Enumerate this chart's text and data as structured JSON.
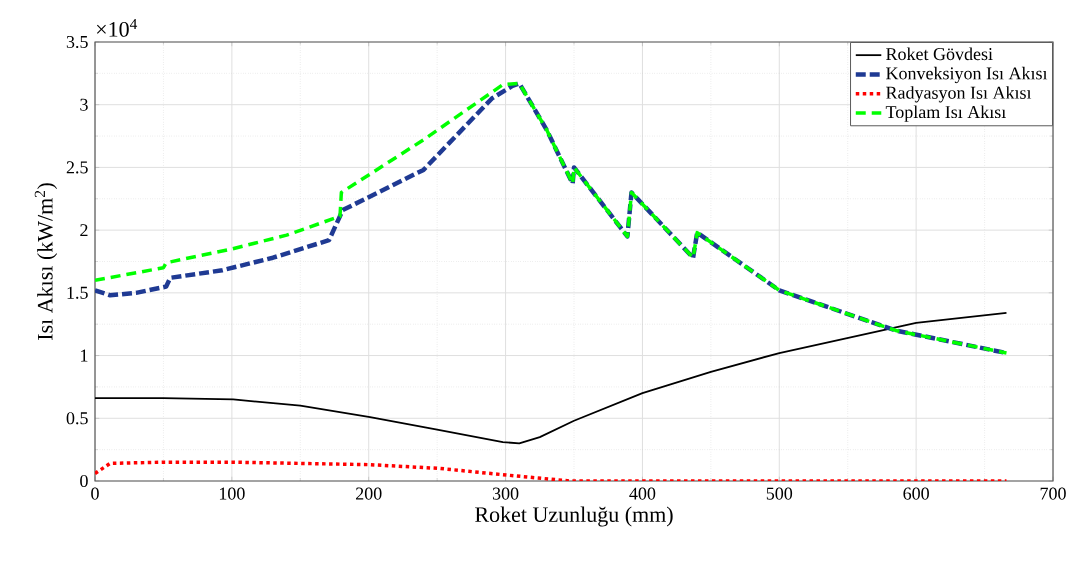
{
  "chart_data": {
    "type": "line",
    "xlabel": "Roket Uzunluğu (mm)",
    "ylabel": "Isı Akısı (kW/m$^{2}$)",
    "annotations": [
      "×10$^{4}$"
    ],
    "xlim": [
      0,
      700
    ],
    "xticks": [
      0,
      100,
      200,
      300,
      400,
      500,
      600,
      700
    ],
    "ylim": [
      0,
      3.5
    ],
    "yticks": [
      0,
      0.5,
      1,
      1.5,
      2,
      2.5,
      3,
      3.5
    ],
    "grid": true,
    "legend": "top right",
    "series": [
      {
        "name": "Roket Gövdesi",
        "color": "#000000",
        "line_style": "solid",
        "x": [
          0,
          50,
          101,
          150,
          201,
          250,
          298,
          310,
          325,
          350,
          400,
          450,
          500,
          550,
          600,
          666
        ],
        "values": [
          0.66,
          0.66,
          0.65,
          0.6,
          0.51,
          0.41,
          0.31,
          0.3,
          0.35,
          0.48,
          0.7,
          0.87,
          1.02,
          1.14,
          1.26,
          1.34
        ]
      },
      {
        "name": "Konveksiyon Isı Akısı",
        "color": "#1f3a93",
        "line_style": "dashed",
        "x": [
          0,
          11,
          30,
          52,
          55,
          93,
          130,
          171,
          181,
          240,
          290,
          305,
          310,
          330,
          349,
          350,
          389,
          392,
          437,
          440,
          500,
          585,
          666
        ],
        "values": [
          1.52,
          1.48,
          1.5,
          1.55,
          1.62,
          1.68,
          1.78,
          1.92,
          2.16,
          2.48,
          3.05,
          3.15,
          3.17,
          2.8,
          2.37,
          2.5,
          1.95,
          2.3,
          1.78,
          1.98,
          1.52,
          1.2,
          1.02
        ]
      },
      {
        "name": "Radyasyon Isı Akısı",
        "color": "#ff0000",
        "line_style": "dotted",
        "x": [
          0,
          11,
          50,
          101,
          150,
          201,
          252,
          298,
          347,
          400,
          500,
          600,
          666
        ],
        "values": [
          0.06,
          0.14,
          0.15,
          0.15,
          0.14,
          0.13,
          0.1,
          0.05,
          0,
          0,
          0,
          0,
          0
        ]
      },
      {
        "name": "Toplam Isı Akısı",
        "color": "#00ff00",
        "line_style": "dashed",
        "x": [
          0,
          50,
          52,
          100,
          140,
          179,
          180,
          240,
          298,
          310,
          330,
          349,
          350,
          389,
          392,
          437,
          440,
          500,
          585,
          666
        ],
        "values": [
          1.6,
          1.7,
          1.74,
          1.85,
          1.96,
          2.11,
          2.3,
          2.72,
          3.16,
          3.17,
          2.8,
          2.37,
          2.5,
          1.95,
          2.3,
          1.78,
          1.98,
          1.52,
          1.2,
          1.02
        ]
      }
    ]
  }
}
